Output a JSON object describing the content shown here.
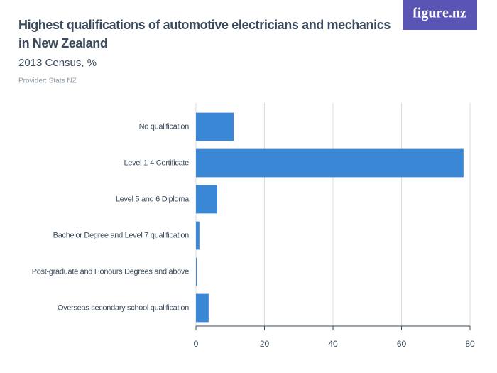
{
  "brand": "figure.nz",
  "chart_data": {
    "type": "bar",
    "orientation": "horizontal",
    "title": "Highest qualifications of automotive electricians and mechanics in New Zealand",
    "subtitle": "2013 Census, %",
    "source": "Provider: Stats NZ",
    "categories": [
      "No qualification",
      "Level 1-4 Certificate",
      "Level 5 and 6 Diploma",
      "Bachelor Degree and Level 7 qualification",
      "Post-graduate and Honours Degrees and above",
      "Overseas secondary school qualification"
    ],
    "values": [
      11.0,
      78.1,
      6.2,
      1.0,
      0.2,
      3.7
    ],
    "color": "#3a87d6",
    "xlim": [
      0,
      80
    ],
    "xticks": [
      0,
      20,
      40,
      60,
      80
    ],
    "grid": true
  }
}
